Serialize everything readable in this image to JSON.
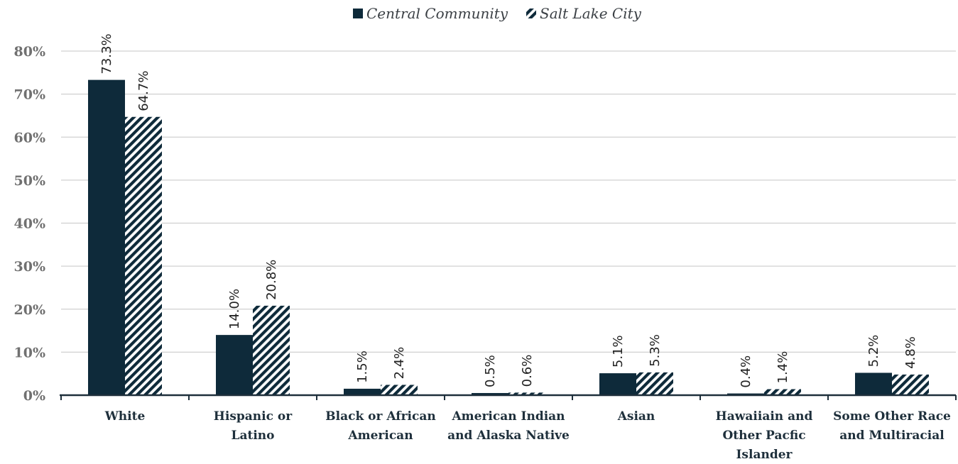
{
  "chart_data": {
    "type": "bar",
    "title": "",
    "xlabel": "",
    "ylabel": "",
    "ylim": [
      0,
      80
    ],
    "yticks": [
      0,
      10,
      20,
      30,
      40,
      50,
      60,
      70,
      80
    ],
    "ytick_labels": [
      "0%",
      "10%",
      "20%",
      "30%",
      "40%",
      "50%",
      "60%",
      "70%",
      "80%"
    ],
    "grid": true,
    "legend_position": "top-center",
    "categories": [
      [
        "White"
      ],
      [
        "Hispanic or",
        "Latino"
      ],
      [
        "Black or African",
        "American"
      ],
      [
        "American Indian",
        "and Alaska Native"
      ],
      [
        "Asian"
      ],
      [
        "Hawaiiain and",
        "Other Pacfic",
        "Islander"
      ],
      [
        "Some Other Race",
        "and Multiracial"
      ]
    ],
    "series": [
      {
        "name": "Central Community",
        "values": [
          73.3,
          14.0,
          1.5,
          0.5,
          5.1,
          0.4,
          5.2
        ],
        "labels": [
          "73.3%",
          "14.0%",
          "1.5%",
          "0.5%",
          "5.1%",
          "0.4%",
          "5.2%"
        ],
        "color": "#0e2a3a",
        "pattern": "solid"
      },
      {
        "name": "Salt Lake City",
        "values": [
          64.7,
          20.8,
          2.4,
          0.6,
          5.3,
          1.4,
          4.8
        ],
        "labels": [
          "64.7%",
          "20.8%",
          "2.4%",
          "0.6%",
          "5.3%",
          "1.4%",
          "4.8%"
        ],
        "color": "#0e2a3a",
        "pattern": "diagonal-stripes"
      }
    ]
  }
}
